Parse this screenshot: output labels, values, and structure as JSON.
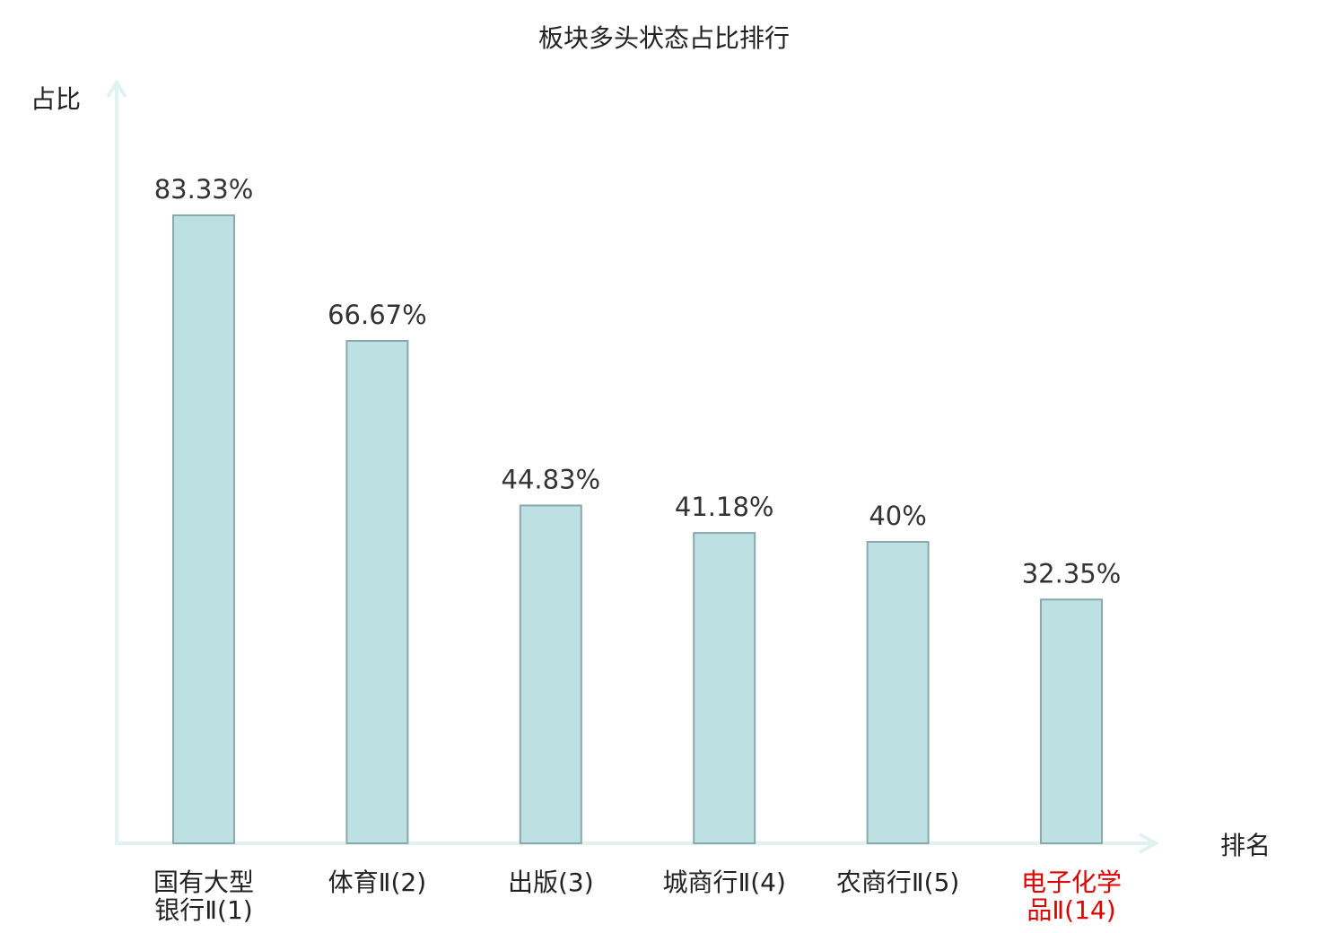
{
  "chart_data": {
    "type": "bar",
    "title": "板块多头状态占比排行",
    "ylabel": "占比",
    "xlabel": "排名",
    "ylim": [
      0,
      100
    ],
    "grid": false,
    "categories": [
      {
        "lines": [
          "国有大型",
          "银行Ⅱ(1)"
        ],
        "highlight": false
      },
      {
        "lines": [
          "体育Ⅱ(2)"
        ],
        "highlight": false
      },
      {
        "lines": [
          "出版(3)"
        ],
        "highlight": false
      },
      {
        "lines": [
          "城商行Ⅱ(4)"
        ],
        "highlight": false
      },
      {
        "lines": [
          "农商行Ⅱ(5)"
        ],
        "highlight": false
      },
      {
        "lines": [
          "电子化学",
          "品Ⅱ(14)"
        ],
        "highlight": true
      }
    ],
    "values": [
      83.33,
      66.67,
      44.83,
      41.18,
      40,
      32.35
    ],
    "value_labels": [
      "83.33%",
      "66.67%",
      "44.83%",
      "41.18%",
      "40%",
      "32.35%"
    ],
    "colors": {
      "bar_fill": "#bde0e2",
      "bar_stroke": "#8aa9ab",
      "axis": "#e0f3f1",
      "text": "#222222",
      "value_text": "#333333",
      "highlight": "#e00000"
    }
  }
}
